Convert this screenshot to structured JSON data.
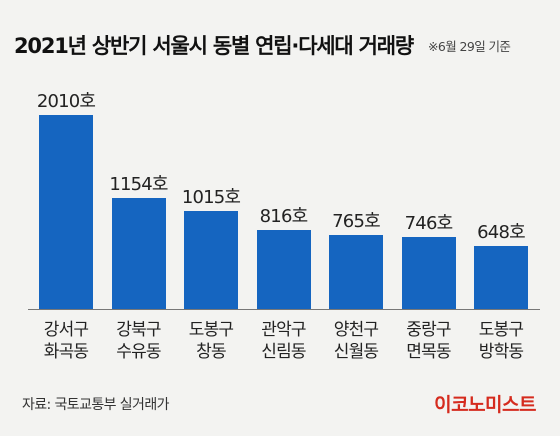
{
  "chart_data": {
    "type": "bar",
    "title": "2021년 상반기 서울시 동별 연립·다세대 거래량",
    "note": "※6월 29일 기준",
    "categories": [
      [
        "강서구",
        "화곡동"
      ],
      [
        "강북구",
        "수유동"
      ],
      [
        "도봉구",
        "창동"
      ],
      [
        "관악구",
        "신림동"
      ],
      [
        "양천구",
        "신월동"
      ],
      [
        "중랑구",
        "면목동"
      ],
      [
        "도봉구",
        "방학동"
      ]
    ],
    "values": [
      2010,
      1154,
      1015,
      816,
      765,
      746,
      648
    ],
    "value_labels": [
      "2010호",
      "1154호",
      "1015호",
      "816호",
      "765호",
      "746호",
      "648호"
    ],
    "bar_color": "#1565c0",
    "grid": false
  },
  "source": "자료: 국토교통부 실거래가",
  "brand": "이코노미스트",
  "brand_color": "#d52b1e"
}
